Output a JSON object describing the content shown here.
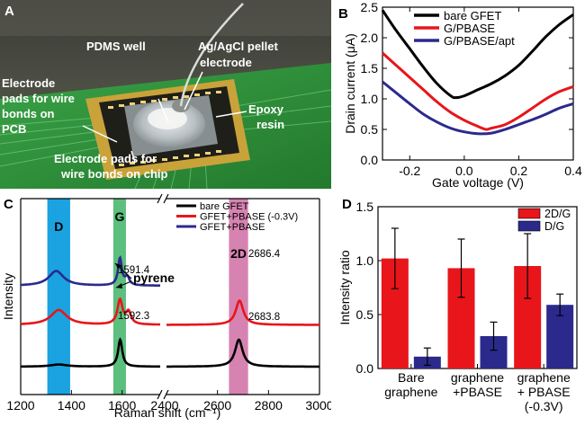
{
  "panel_labels": {
    "a": "A",
    "b": "B",
    "c": "C",
    "d": "D"
  },
  "photo": {
    "labels": {
      "pdms": "PDMS well",
      "agcl_1": "Ag/AgCl pellet",
      "agcl_2": "electrode",
      "pcb_1": "Electrode",
      "pcb_2": "pads for wire",
      "pcb_3": "bonds on",
      "pcb_4": "PCB",
      "epoxy_1": "Epoxy",
      "epoxy_2": "resin",
      "chip_1": "Electrode pads for",
      "chip_2": "wire bonds on chip"
    },
    "colors": {
      "board": "#2f8f3a",
      "gold": "#c9a33a",
      "dark": "#2a2a22",
      "well": "#cfd4d6"
    }
  },
  "chart_data": [
    {
      "panel": "B",
      "type": "line",
      "xlabel": "Gate voltage (V)",
      "ylabel": "Drain current  (μA)",
      "xlim": [
        -0.3,
        0.4
      ],
      "ylim": [
        0.0,
        2.5
      ],
      "xticks": [
        "-0.2",
        "0.0",
        "0.2",
        "0.4"
      ],
      "yticks": [
        "0.0",
        "0.5",
        "1.0",
        "1.5",
        "2.0",
        "2.5"
      ],
      "legend_position": "top-right",
      "series": [
        {
          "name": "bare GFET",
          "color": "#000000",
          "x": [
            -0.3,
            -0.25,
            -0.2,
            -0.15,
            -0.1,
            -0.05,
            -0.03,
            0.0,
            0.05,
            0.1,
            0.15,
            0.2,
            0.25,
            0.3,
            0.35,
            0.4
          ],
          "y": [
            2.45,
            2.12,
            1.82,
            1.52,
            1.25,
            1.05,
            1.02,
            1.05,
            1.15,
            1.25,
            1.38,
            1.55,
            1.78,
            2.02,
            2.22,
            2.38
          ]
        },
        {
          "name": "G/PBASE",
          "color": "#e8151b",
          "x": [
            -0.3,
            -0.25,
            -0.2,
            -0.15,
            -0.1,
            -0.05,
            0.0,
            0.05,
            0.08,
            0.1,
            0.15,
            0.2,
            0.25,
            0.3,
            0.35,
            0.4
          ],
          "y": [
            1.75,
            1.55,
            1.35,
            1.15,
            0.95,
            0.78,
            0.65,
            0.55,
            0.5,
            0.52,
            0.58,
            0.7,
            0.85,
            1.0,
            1.12,
            1.2
          ]
        },
        {
          "name": "G/PBASE/apt",
          "color": "#2b2a8c",
          "x": [
            -0.3,
            -0.25,
            -0.2,
            -0.15,
            -0.1,
            -0.05,
            0.0,
            0.05,
            0.1,
            0.15,
            0.2,
            0.25,
            0.3,
            0.35,
            0.4
          ],
          "y": [
            1.28,
            1.1,
            0.92,
            0.75,
            0.62,
            0.52,
            0.46,
            0.43,
            0.44,
            0.5,
            0.58,
            0.66,
            0.75,
            0.85,
            0.92
          ]
        }
      ]
    },
    {
      "panel": "C",
      "type": "line",
      "xlabel": "Raman shift (cm⁻¹)",
      "ylabel": "Intensity",
      "legend_position": "top-right",
      "left_xlim": [
        1200,
        1750
      ],
      "right_xlim": [
        2400,
        3000
      ],
      "left_xticks": [
        "1200",
        "1400",
        "1600"
      ],
      "right_xticks": [
        "2400",
        "2600",
        "2800",
        "3000"
      ],
      "bottom_left_tick": "1200",
      "break_tick": "2400",
      "highlight_bands": [
        {
          "label": "D",
          "range": [
            1305,
            1395
          ],
          "color": "#1aa3e0"
        },
        {
          "label": "G",
          "range": [
            1565,
            1615
          ],
          "color": "#5cbf7e"
        },
        {
          "label": "2D",
          "range": [
            2645,
            2720
          ],
          "color": "#d783b2"
        }
      ],
      "annotations": [
        "1591.4",
        "1592.3",
        "2686.4",
        "2683.8",
        "pyrene"
      ],
      "series": [
        {
          "name": "bare GFET",
          "color": "#000000",
          "offset": 0.0,
          "peaks": [
            {
              "center": 1350,
              "height": 0.08,
              "width": 40
            },
            {
              "center": 1592.3,
              "height": 1.0,
              "width": 10
            },
            {
              "center": 2683.8,
              "height": 1.0,
              "width": 18
            }
          ]
        },
        {
          "name": "GFET+PBASE (-0.3V)",
          "color": "#e8151b",
          "offset": 1.55,
          "peaks": [
            {
              "center": 1350,
              "height": 0.55,
              "width": 38
            },
            {
              "center": 1591.4,
              "height": 0.9,
              "width": 12
            },
            {
              "center": 1625,
              "height": 0.45,
              "width": 12
            },
            {
              "center": 2686.4,
              "height": 0.9,
              "width": 18
            }
          ]
        },
        {
          "name": "GFET+PBASE",
          "color": "#2b2a8c",
          "offset": 3.0,
          "peaks": [
            {
              "center": 1340,
              "height": 0.55,
              "width": 35
            },
            {
              "center": 1591.4,
              "height": 1.0,
              "width": 9
            },
            {
              "center": 1620,
              "height": 0.3,
              "width": 10
            }
          ]
        }
      ]
    },
    {
      "panel": "D",
      "type": "bar",
      "ylabel": "Intensity ratio",
      "ylim": [
        0.0,
        1.5
      ],
      "yticks": [
        "0.0",
        "0.5",
        "1.0",
        "1.5"
      ],
      "categories": [
        {
          "lines": [
            "Bare",
            "graphene"
          ]
        },
        {
          "lines": [
            "graphene",
            "+PBASE"
          ]
        },
        {
          "lines": [
            "graphene",
            "+ PBASE",
            "(-0.3V)"
          ]
        }
      ],
      "legend_position": "top-right",
      "series": [
        {
          "name": "2D/G",
          "color": "#e8151b",
          "values": [
            1.02,
            0.93,
            0.95
          ],
          "errors": [
            0.28,
            0.27,
            0.3
          ]
        },
        {
          "name": "D/G",
          "color": "#2b2a8c",
          "values": [
            0.11,
            0.3,
            0.59
          ],
          "errors": [
            0.08,
            0.13,
            0.1
          ]
        }
      ]
    }
  ]
}
